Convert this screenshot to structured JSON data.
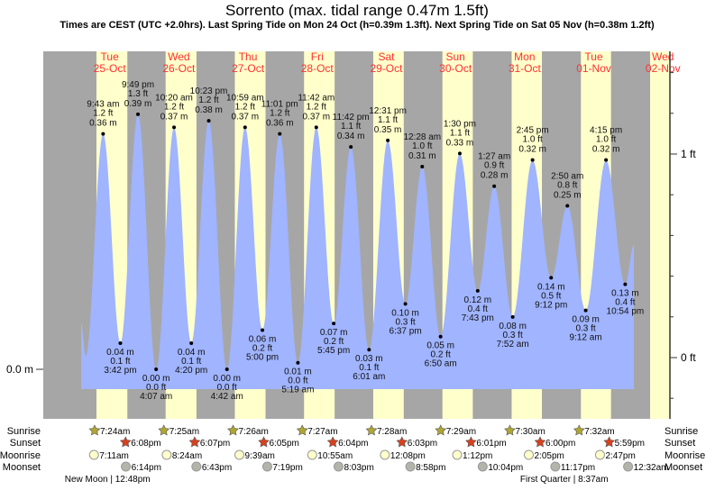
{
  "chart_data": {
    "type": "area",
    "title": "Sorrento (max. tidal range 0.47m 1.5ft)",
    "subtitle": "Times are CEST (UTC +2.0hrs). Last Spring Tide on Mon 24 Oct (h=0.39m 1.3ft). Next Spring Tide on Sat 05 Nov (h=0.38m 1.2ft)",
    "colors": {
      "night": "#a6a6a6",
      "day": "#ffffcc",
      "water": "#a0b4ff",
      "day_label": "#ff3030",
      "sunrise": "#b0a632",
      "sunset": "#d8401e",
      "moonrise": "#ffffcc",
      "moonset": "#b4b4aa"
    },
    "days": [
      {
        "dow": "Tue",
        "date": "25-Oct"
      },
      {
        "dow": "Wed",
        "date": "26-Oct"
      },
      {
        "dow": "Thu",
        "date": "27-Oct"
      },
      {
        "dow": "Fri",
        "date": "28-Oct"
      },
      {
        "dow": "Sat",
        "date": "29-Oct"
      },
      {
        "dow": "Sun",
        "date": "30-Oct"
      },
      {
        "dow": "Mon",
        "date": "31-Oct"
      },
      {
        "dow": "Tue",
        "date": "01-Nov"
      },
      {
        "dow": "Wed",
        "date": "02-Nov"
      }
    ],
    "left_axis": {
      "label": "0.0 m",
      "unit": "m",
      "value": 0.0
    },
    "right_axis": {
      "unit": "ft",
      "range": [
        -0.2,
        1.4
      ],
      "minor_step": 0.2,
      "labels": [
        {
          "text": "1 ft",
          "value": 1
        },
        {
          "text": "0 ft",
          "value": 0
        }
      ]
    },
    "edge_points": [
      {
        "day": 0,
        "time": "2:06 am",
        "h": 0.07
      },
      {
        "day": 0,
        "time": "3:40 am",
        "h": 0.02
      },
      {
        "day": 8,
        "time": "1:55 am",
        "h": 0.19
      }
    ],
    "extremes": [
      {
        "day": 0,
        "type": "high",
        "time": "9:43 am",
        "ft": "1.2 ft",
        "m": "0.36 m",
        "h": 0.36
      },
      {
        "day": 0,
        "type": "low",
        "time": "3:42 pm",
        "ft": "0.1 ft",
        "m": "0.04 m",
        "h": 0.04
      },
      {
        "day": 0,
        "type": "high",
        "time": "9:49 pm",
        "ft": "1.3 ft",
        "m": "0.39 m",
        "h": 0.39
      },
      {
        "day": 1,
        "type": "low",
        "time": "4:07 am",
        "ft": "0.0 ft",
        "m": "0.00 m",
        "h": 0.0
      },
      {
        "day": 1,
        "type": "high",
        "time": "10:20 am",
        "ft": "1.2 ft",
        "m": "0.37 m",
        "h": 0.37
      },
      {
        "day": 1,
        "type": "low",
        "time": "4:20 pm",
        "ft": "0.1 ft",
        "m": "0.04 m",
        "h": 0.04
      },
      {
        "day": 1,
        "type": "high",
        "time": "10:23 pm",
        "ft": "1.2 ft",
        "m": "0.38 m",
        "h": 0.38
      },
      {
        "day": 2,
        "type": "low",
        "time": "4:42 am",
        "ft": "0.0 ft",
        "m": "0.00 m",
        "h": 0.0
      },
      {
        "day": 2,
        "type": "high",
        "time": "10:59 am",
        "ft": "1.2 ft",
        "m": "0.37 m",
        "h": 0.37
      },
      {
        "day": 2,
        "type": "low",
        "time": "5:00 pm",
        "ft": "0.2 ft",
        "m": "0.06 m",
        "h": 0.06
      },
      {
        "day": 2,
        "type": "high",
        "time": "11:01 pm",
        "ft": "1.2 ft",
        "m": "0.36 m",
        "h": 0.36
      },
      {
        "day": 3,
        "type": "low",
        "time": "5:19 am",
        "ft": "0.0 ft",
        "m": "0.01 m",
        "h": 0.01
      },
      {
        "day": 3,
        "type": "high",
        "time": "11:42 am",
        "ft": "1.2 ft",
        "m": "0.37 m",
        "h": 0.37
      },
      {
        "day": 3,
        "type": "low",
        "time": "5:45 pm",
        "ft": "0.2 ft",
        "m": "0.07 m",
        "h": 0.07
      },
      {
        "day": 3,
        "type": "high",
        "time": "11:42 pm",
        "ft": "1.1 ft",
        "m": "0.34 m",
        "h": 0.34
      },
      {
        "day": 4,
        "type": "low",
        "time": "6:01 am",
        "ft": "0.1 ft",
        "m": "0.03 m",
        "h": 0.03
      },
      {
        "day": 4,
        "type": "high",
        "time": "12:31 pm",
        "ft": "1.1 ft",
        "m": "0.35 m",
        "h": 0.35
      },
      {
        "day": 4,
        "type": "low",
        "time": "6:37 pm",
        "ft": "0.3 ft",
        "m": "0.10 m",
        "h": 0.1
      },
      {
        "day": 5,
        "type": "high",
        "time": "12:28 am",
        "ft": "1.0 ft",
        "m": "0.31 m",
        "h": 0.31
      },
      {
        "day": 5,
        "type": "low",
        "time": "6:50 am",
        "ft": "0.2 ft",
        "m": "0.05 m",
        "h": 0.05
      },
      {
        "day": 5,
        "type": "high",
        "time": "1:30 pm",
        "ft": "1.1 ft",
        "m": "0.33 m",
        "h": 0.33
      },
      {
        "day": 5,
        "type": "low",
        "time": "7:43 pm",
        "ft": "0.4 ft",
        "m": "0.12 m",
        "h": 0.12
      },
      {
        "day": 6,
        "type": "high",
        "time": "1:27 am",
        "ft": "0.9 ft",
        "m": "0.28 m",
        "h": 0.28
      },
      {
        "day": 6,
        "type": "low",
        "time": "7:52 am",
        "ft": "0.3 ft",
        "m": "0.08 m",
        "h": 0.08
      },
      {
        "day": 6,
        "type": "high",
        "time": "2:45 pm",
        "ft": "1.0 ft",
        "m": "0.32 m",
        "h": 0.32
      },
      {
        "day": 6,
        "type": "low",
        "time": "9:12 pm",
        "ft": "0.5 ft",
        "m": "0.14 m",
        "h": 0.14
      },
      {
        "day": 7,
        "type": "high",
        "time": "2:50 am",
        "ft": "0.8 ft",
        "m": "0.25 m",
        "h": 0.25
      },
      {
        "day": 7,
        "type": "low",
        "time": "9:12 am",
        "ft": "0.3 ft",
        "m": "0.09 m",
        "h": 0.09
      },
      {
        "day": 7,
        "type": "high",
        "time": "4:15 pm",
        "ft": "1.0 ft",
        "m": "0.32 m",
        "h": 0.32
      },
      {
        "day": 7,
        "type": "low",
        "time": "10:54 pm",
        "ft": "0.4 ft",
        "m": "0.13 m",
        "h": 0.13
      }
    ],
    "rows": {
      "sunrise": {
        "label": "Sunrise",
        "events": [
          {
            "day": 0,
            "time": "7:24am"
          },
          {
            "day": 1,
            "time": "7:25am"
          },
          {
            "day": 2,
            "time": "7:26am"
          },
          {
            "day": 3,
            "time": "7:27am"
          },
          {
            "day": 4,
            "time": "7:28am"
          },
          {
            "day": 5,
            "time": "7:29am"
          },
          {
            "day": 6,
            "time": "7:30am"
          },
          {
            "day": 7,
            "time": "7:32am"
          }
        ]
      },
      "sunset": {
        "label": "Sunset",
        "events": [
          {
            "day": 0,
            "time": "6:08pm"
          },
          {
            "day": 1,
            "time": "6:07pm"
          },
          {
            "day": 2,
            "time": "6:05pm"
          },
          {
            "day": 3,
            "time": "6:04pm"
          },
          {
            "day": 4,
            "time": "6:03pm"
          },
          {
            "day": 5,
            "time": "6:01pm"
          },
          {
            "day": 6,
            "time": "6:00pm"
          },
          {
            "day": 7,
            "time": "5:59pm"
          }
        ]
      },
      "moonrise": {
        "label": "Moonrise",
        "events": [
          {
            "day": 0,
            "time": "7:11am"
          },
          {
            "day": 1,
            "time": "8:24am"
          },
          {
            "day": 2,
            "time": "9:39am"
          },
          {
            "day": 3,
            "time": "10:55am"
          },
          {
            "day": 4,
            "time": "12:08pm"
          },
          {
            "day": 5,
            "time": "1:12pm"
          },
          {
            "day": 6,
            "time": "2:05pm"
          },
          {
            "day": 7,
            "time": "2:47pm"
          }
        ]
      },
      "moonset": {
        "label": "Moonset",
        "events": [
          {
            "day": 0,
            "time": "6:14pm"
          },
          {
            "day": 1,
            "time": "6:43pm"
          },
          {
            "day": 2,
            "time": "7:19pm"
          },
          {
            "day": 3,
            "time": "8:03pm"
          },
          {
            "day": 4,
            "time": "8:58pm"
          },
          {
            "day": 5,
            "time": "10:04pm"
          },
          {
            "day": 6,
            "time": "11:17pm"
          },
          {
            "day": 8,
            "time": "12:32am"
          }
        ]
      }
    },
    "moon_phases": [
      {
        "day": 0,
        "time": "12:48pm",
        "label": "New Moon | 12:48pm"
      },
      {
        "day": 7,
        "time": "8:37am",
        "label": "First Quarter | 8:37am"
      }
    ]
  }
}
